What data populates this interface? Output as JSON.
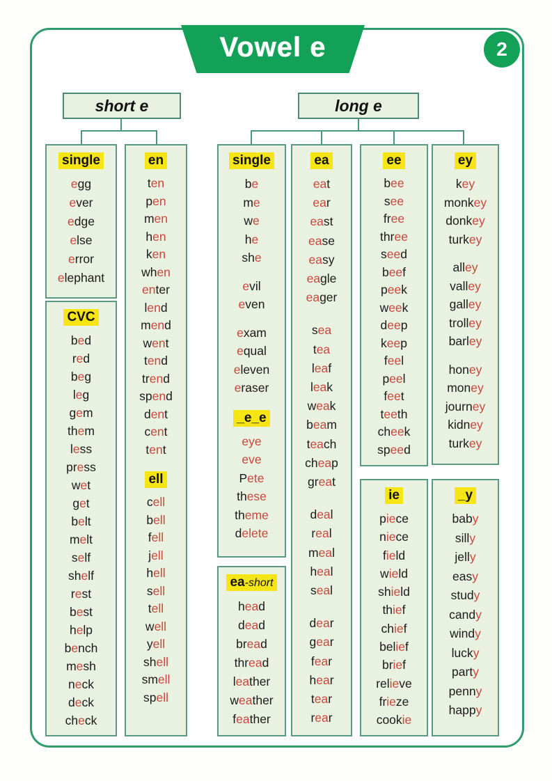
{
  "banner": {
    "title": "Vowel e",
    "badge": "2"
  },
  "groups": [
    {
      "label": "short e"
    },
    {
      "label": "long e"
    }
  ],
  "colors": {
    "banner_green": "#12a156",
    "card_border_green": "#2f9c6d",
    "box_fill": "#e9f1e0",
    "box_border": "#5b9a82",
    "red_letter": "#c8473c",
    "highlight_yellow": "#f6e515"
  },
  "columns": [
    {
      "group": "short e",
      "boxes": [
        {
          "sections": [
            {
              "header": "single",
              "words": [
                "{e}gg",
                "{e}ver",
                "{e}dge",
                "{e}lse",
                "{e}rror",
                "{e}lephant"
              ]
            }
          ]
        },
        {
          "sections": [
            {
              "header": "CVC",
              "words": [
                "b{e}d",
                "r{e}d",
                "b{e}g",
                "l{e}g",
                "g{e}m",
                "th{e}m",
                "l{e}ss",
                "pr{e}ss",
                "w{e}t",
                "g{e}t",
                "b{e}lt",
                "m{e}lt",
                "s{e}lf",
                "sh{e}lf",
                "r{e}st",
                "b{e}st",
                "h{e}lp",
                "b{e}nch",
                "m{e}sh",
                "n{e}ck",
                "d{e}ck",
                "ch{e}ck"
              ]
            }
          ]
        }
      ]
    },
    {
      "group": "short e",
      "boxes": [
        {
          "sections": [
            {
              "header": "en",
              "words": [
                "t{en}",
                "p{en}",
                "m{en}",
                "h{en}",
                "k{en}",
                "wh{en}",
                "{en}ter",
                "l{en}d",
                "m{en}d",
                "w{en}t",
                "t{en}d",
                "tr{en}d",
                "sp{en}d",
                "d{en}t",
                "c{en}t",
                "t{en}t"
              ]
            },
            {
              "header": "ell",
              "words": [
                "c{ell}",
                "b{ell}",
                "f{ell}",
                "j{ell}",
                "h{ell}",
                "s{ell}",
                "t{ell}",
                "w{ell}",
                "y{ell}",
                "sh{ell}",
                "sm{ell}",
                "sp{ell}"
              ]
            }
          ]
        }
      ]
    },
    {
      "group": "long e",
      "boxes": [
        {
          "sections": [
            {
              "header": "single",
              "words": [
                "b{e}",
                "m{e}",
                "w{e}",
                "h{e}",
                "sh{e}",
                "",
                "{e}vil",
                "{e}ven",
                "",
                "{e}xam",
                "{e}qual",
                "{e}leven",
                "{e}raser"
              ]
            },
            {
              "header": "_e_e",
              "words": [
                "{eye}",
                "{eve}",
                "P{ete}",
                "th{ese}",
                "th{eme}",
                "d{elete}"
              ]
            }
          ]
        },
        {
          "sections": [
            {
              "header": "ea",
              "suffix": "-short",
              "words": [
                "h{ea}d",
                "d{ea}d",
                "br{ea}d",
                "thr{ea}d",
                "l{ea}ther",
                "w{ea}ther",
                "f{ea}ther"
              ]
            }
          ]
        }
      ]
    },
    {
      "group": "long e",
      "boxes": [
        {
          "sections": [
            {
              "header": "ea",
              "words": [
                "{ea}t",
                "{ea}r",
                "{ea}st",
                "{ea}se",
                "{ea}sy",
                "{ea}gle",
                "{ea}ger",
                "",
                "s{ea}",
                "t{ea}",
                "l{ea}f",
                "l{ea}k",
                "w{ea}k",
                "b{ea}m",
                "t{ea}ch",
                "ch{ea}p",
                "gr{ea}t",
                "",
                "d{ea}l",
                "r{ea}l",
                "m{ea}l",
                "h{ea}l",
                "s{ea}l",
                "",
                "d{ea}r",
                "g{ea}r",
                "f{ea}r",
                "h{ea}r",
                "t{ea}r",
                "r{ea}r"
              ]
            }
          ]
        }
      ]
    },
    {
      "group": "long e",
      "boxes": [
        {
          "sections": [
            {
              "header": "ee",
              "words": [
                "b{ee}",
                "s{ee}",
                "fr{ee}",
                "thr{ee}",
                "s{ee}d",
                "b{ee}f",
                "p{ee}k",
                "w{ee}k",
                "d{ee}p",
                "k{ee}p",
                "f{ee}l",
                "p{ee}l",
                "f{ee}t",
                "t{ee}th",
                "ch{ee}k",
                "sp{ee}d"
              ]
            }
          ]
        },
        {
          "sections": [
            {
              "header": "ie",
              "words": [
                "p{ie}ce",
                "n{ie}ce",
                "f{ie}ld",
                "w{ie}ld",
                "sh{ie}ld",
                "th{ie}f",
                "ch{ie}f",
                "bel{ie}f",
                "br{ie}f",
                "rel{ie}ve",
                "fr{ie}ze",
                "cook{ie}"
              ]
            }
          ]
        }
      ]
    },
    {
      "group": "long e",
      "boxes": [
        {
          "sections": [
            {
              "header": "ey",
              "words": [
                "k{ey}",
                "monk{ey}",
                "donk{ey}",
                "turk{ey}",
                "",
                "all{ey}",
                "vall{ey}",
                "gall{ey}",
                "troll{ey}",
                "barl{ey}",
                "",
                "hon{ey}",
                "mon{ey}",
                "journ{ey}",
                "kidn{ey}",
                "turk{ey}"
              ]
            }
          ]
        },
        {
          "sections": [
            {
              "header": "_y",
              "words": [
                "bab{y}",
                "sill{y}",
                "jell{y}",
                "eas{y}",
                "stud{y}",
                "cand{y}",
                "wind{y}",
                "luck{y}",
                "part{y}",
                "penn{y}",
                "happ{y}"
              ]
            }
          ]
        }
      ]
    }
  ]
}
